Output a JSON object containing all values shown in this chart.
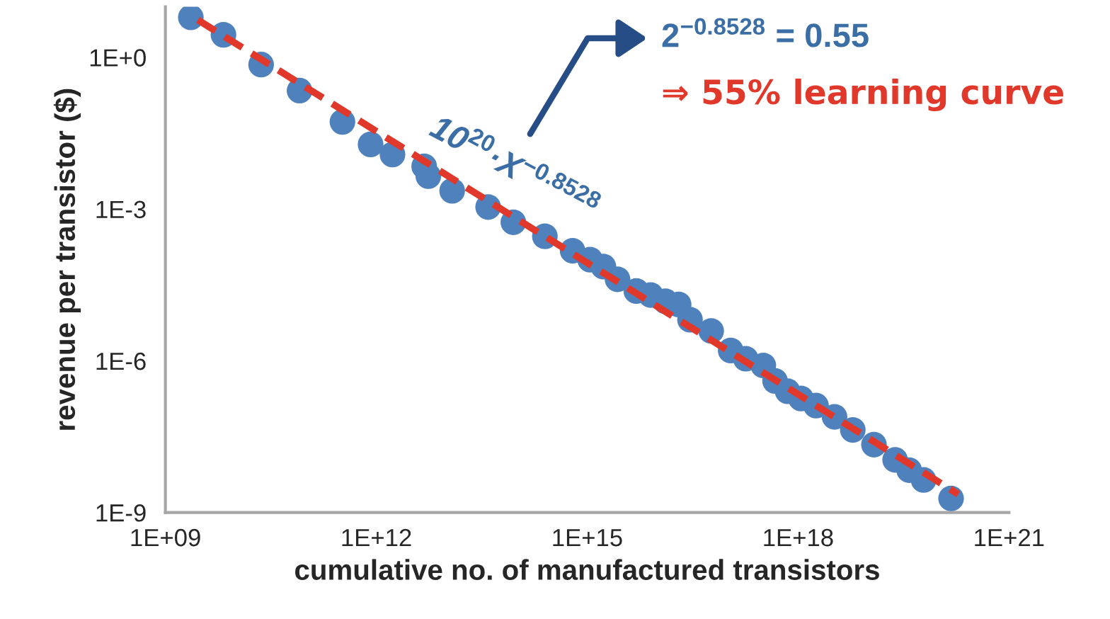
{
  "chart_data": {
    "type": "scatter",
    "xlabel": "cumulative no. of manufactured transistors",
    "ylabel": "revenue per transistor ($)",
    "log": "xy",
    "grid": false,
    "marker": "circle",
    "xlim": [
      1000000000.0,
      1e+21
    ],
    "xticks": [
      {
        "value": 1000000000.0,
        "label": "1E+09"
      },
      {
        "value": 1000000000000.0,
        "label": "1E+12"
      },
      {
        "value": 1000000000000000.0,
        "label": "1E+15"
      },
      {
        "value": 1e+18,
        "label": "1E+18"
      },
      {
        "value": 1e+21,
        "label": "1E+21"
      }
    ],
    "ylim": [
      1e-09,
      10
    ],
    "yticks": [
      {
        "value": 1e-09,
        "label": "1E-9"
      },
      {
        "value": 1e-06,
        "label": "1E-6"
      },
      {
        "value": 0.001,
        "label": "1E-3"
      },
      {
        "value": 1,
        "label": "1E+0"
      }
    ],
    "series": [
      {
        "color": "#4f81bd",
        "x": [
          2300000000.0,
          6700000000.0,
          23000000000.0,
          81000000000.0,
          330000000000.0,
          830000000000.0,
          1700000000000.0,
          4800000000000.0,
          5500000000000.0,
          12000000000000.0,
          39000000000000.0,
          89000000000000.0,
          250000000000000.0,
          620000000000000.0,
          1100000000000000.0,
          1700000000000000.0,
          2700000000000000.0,
          5000000000000000.0,
          8000000000000000.0,
          1.3e+16,
          2e+16,
          2.9e+16,
          5.8e+16,
          1.1e+17,
          1.8e+17,
          3.2e+17,
          4.7e+17,
          7.1e+17,
          1.1e+18,
          1.8e+18,
          3.3e+18,
          6e+18,
          1.2e+19,
          2.4e+19,
          3.8e+19,
          6.1e+19,
          1.5e+20
        ],
        "values": [
          6.2,
          2.8,
          0.72,
          0.22,
          0.053,
          0.019,
          0.012,
          0.007,
          0.0045,
          0.0023,
          0.0011,
          0.00055,
          0.00029,
          0.00015,
          0.0001,
          7.3e-05,
          4.1e-05,
          2.4e-05,
          2e-05,
          1.5e-05,
          1.3e-05,
          6.5e-06,
          3.9e-06,
          1.6e-06,
          1.1e-06,
          8.1e-07,
          4e-07,
          2.5e-07,
          1.8e-07,
          1.3e-07,
          7.8e-08,
          4.3e-08,
          2.2e-08,
          1.1e-08,
          6.9e-09,
          4.4e-09,
          1.9e-09
        ]
      },
      {
        "type": "line",
        "color": "#e0392b",
        "line_style": "dashed",
        "marker": "none",
        "x": [
          2900000000.0,
          1.9e+20
        ],
        "values": [
          5.5,
          2.3e-09
        ]
      }
    ],
    "annotations": [
      "10$^{20}$·X$^{−0.8528}$",
      "2$^{−0.8528}$ = 0.55",
      "⇒ 55% learning curve"
    ]
  }
}
